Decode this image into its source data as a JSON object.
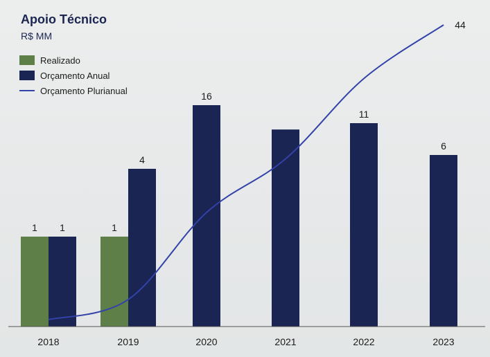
{
  "chart_data": {
    "type": "bar",
    "title": "Apoio Técnico",
    "subtitle": "R$ MM",
    "categories": [
      "2018",
      "2019",
      "2020",
      "2021",
      "2022",
      "2023"
    ],
    "series": [
      {
        "name": "Realizado",
        "kind": "bar",
        "color": "#5f7f49",
        "values": [
          1,
          1,
          null,
          null,
          null,
          null
        ],
        "labels": [
          "1",
          "1",
          "",
          "",
          "",
          ""
        ]
      },
      {
        "name": "Orçamento Anual",
        "kind": "bar",
        "color": "#1b2553",
        "values": [
          1,
          4,
          16,
          10,
          11,
          6
        ],
        "labels": [
          "1",
          "4",
          "16",
          "",
          "11",
          "6"
        ]
      },
      {
        "name": "Orçamento Plurianual",
        "kind": "line",
        "color": "#3242a8",
        "values": [
          0,
          3,
          16,
          24,
          36,
          44
        ],
        "labels": [
          "",
          "",
          "",
          "",
          "",
          "44"
        ]
      }
    ],
    "legend": "top-left",
    "grid": false
  }
}
